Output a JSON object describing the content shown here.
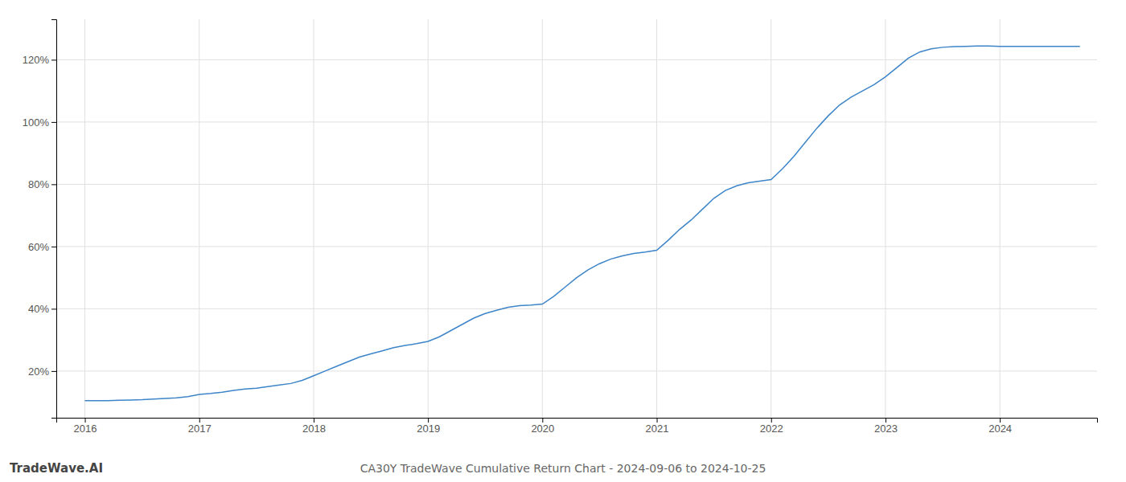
{
  "chart_data": {
    "type": "line",
    "title": "CA30Y TradeWave Cumulative Return Chart - 2024-09-06 to 2024-10-25",
    "annotations": [
      "TradeWave.AI"
    ],
    "color": "#3d85c8",
    "grid": true,
    "x": [
      2016.0,
      2016.1,
      2016.2,
      2016.3,
      2016.4,
      2016.5,
      2016.6,
      2016.7,
      2016.8,
      2016.9,
      2017.0,
      2017.1,
      2017.2,
      2017.3,
      2017.4,
      2017.5,
      2017.6,
      2017.7,
      2017.8,
      2017.9,
      2018.0,
      2018.1,
      2018.2,
      2018.3,
      2018.4,
      2018.5,
      2018.6,
      2018.7,
      2018.8,
      2018.9,
      2019.0,
      2019.1,
      2019.2,
      2019.3,
      2019.4,
      2019.5,
      2019.6,
      2019.7,
      2019.8,
      2019.9,
      2020.0,
      2020.1,
      2020.2,
      2020.3,
      2020.4,
      2020.5,
      2020.6,
      2020.7,
      2020.8,
      2020.9,
      2021.0,
      2021.1,
      2021.2,
      2021.3,
      2021.4,
      2021.5,
      2021.6,
      2021.7,
      2021.8,
      2021.9,
      2022.0,
      2022.1,
      2022.2,
      2022.3,
      2022.4,
      2022.5,
      2022.6,
      2022.7,
      2022.8,
      2022.9,
      2023.0,
      2023.1,
      2023.2,
      2023.3,
      2023.4,
      2023.5,
      2023.6,
      2023.7,
      2023.8,
      2023.9,
      2024.0,
      2024.1,
      2024.2,
      2024.3,
      2024.4,
      2024.5,
      2024.6,
      2024.7
    ],
    "values": [
      10.5,
      10.5,
      10.5,
      10.6,
      10.7,
      10.8,
      11.0,
      11.2,
      11.4,
      11.8,
      12.5,
      12.8,
      13.2,
      13.8,
      14.2,
      14.5,
      15.0,
      15.5,
      16.0,
      17.0,
      18.5,
      20.0,
      21.5,
      23.0,
      24.5,
      25.5,
      26.5,
      27.5,
      28.2,
      28.8,
      29.5,
      31.0,
      33.0,
      35.0,
      37.0,
      38.5,
      39.5,
      40.5,
      41.0,
      41.2,
      41.5,
      44.0,
      47.0,
      50.0,
      52.5,
      54.5,
      56.0,
      57.0,
      57.8,
      58.2,
      58.8,
      62.0,
      65.5,
      68.5,
      72.0,
      75.5,
      78.0,
      79.5,
      80.5,
      81.0,
      81.5,
      85.0,
      89.0,
      93.5,
      98.0,
      102.0,
      105.5,
      108.0,
      110.0,
      112.0,
      114.5,
      117.5,
      120.5,
      122.5,
      123.5,
      124.0,
      124.2,
      124.3,
      124.4,
      124.4,
      124.3,
      124.3,
      124.3,
      124.3,
      124.3,
      124.3,
      124.3,
      124.3
    ],
    "xlim": [
      2015.75,
      2024.85
    ],
    "ylim": [
      5,
      133
    ],
    "xticks": [
      2016,
      2017,
      2018,
      2019,
      2020,
      2021,
      2022,
      2023,
      2024
    ],
    "yticks": [
      {
        "value": 20,
        "label": "20%"
      },
      {
        "value": 40,
        "label": "40%"
      },
      {
        "value": 60,
        "label": "60%"
      },
      {
        "value": 80,
        "label": "80%"
      },
      {
        "value": 100,
        "label": "100%"
      },
      {
        "value": 120,
        "label": "120%"
      }
    ]
  }
}
